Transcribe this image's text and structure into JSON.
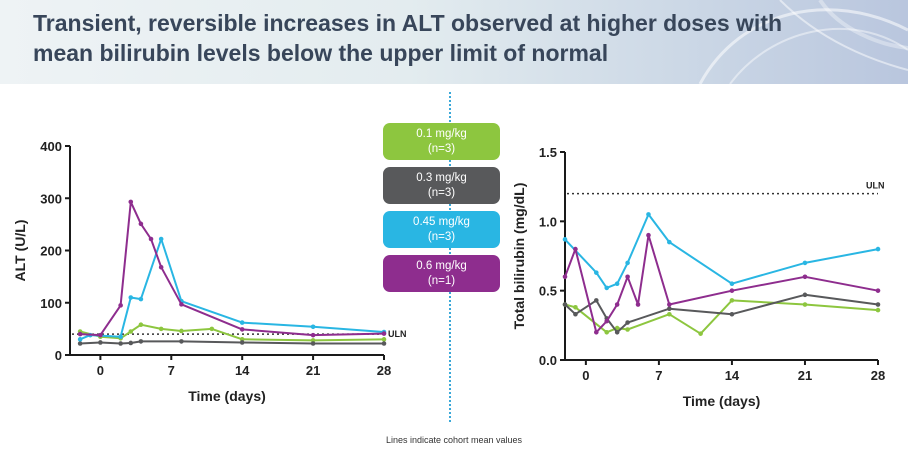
{
  "header": {
    "title_line1": "Transient, reversible increases in ALT observed at higher doses with",
    "title_line2": "mean bilirubin levels below the upper limit of normal"
  },
  "footnote": "Lines indicate cohort mean values",
  "colors": {
    "dose_0_1": "#8dc63f",
    "dose_0_3": "#58595b",
    "dose_0_45": "#29b6e3",
    "dose_0_6": "#8e2d8e"
  },
  "legend": [
    {
      "dose": "0.1 mg/kg",
      "n": "(n=3)",
      "color": "#8dc63f"
    },
    {
      "dose": "0.3 mg/kg",
      "n": "(n=3)",
      "color": "#58595b"
    },
    {
      "dose": "0.45 mg/kg",
      "n": "(n=3)",
      "color": "#29b6e3"
    },
    {
      "dose": "0.6 mg/kg",
      "n": "(n=1)",
      "color": "#8e2d8e"
    }
  ],
  "chart_data": [
    {
      "id": "alt",
      "type": "line",
      "xlabel": "Time (days)",
      "ylabel": "ALT (U/L)",
      "xlim": [
        -3,
        28
      ],
      "ylim": [
        0,
        400
      ],
      "xticks": [
        0,
        7,
        14,
        21,
        28
      ],
      "yticks": [
        0,
        100,
        200,
        300,
        400
      ],
      "reference_line": {
        "label": "ULN",
        "value": 40
      },
      "series": [
        {
          "name": "0.1 mg/kg (n=3)",
          "color": "#8dc63f",
          "x": [
            -2,
            0,
            2,
            3,
            4,
            6,
            8,
            11,
            14,
            21,
            28
          ],
          "y": [
            45,
            35,
            32,
            45,
            58,
            50,
            46,
            50,
            30,
            28,
            30
          ]
        },
        {
          "name": "0.3 mg/kg (n=3)",
          "color": "#58595b",
          "x": [
            -2,
            0,
            2,
            3,
            4,
            8,
            14,
            21,
            28
          ],
          "y": [
            22,
            24,
            22,
            23,
            26,
            26,
            24,
            22,
            22
          ]
        },
        {
          "name": "0.45 mg/kg (n=3)",
          "color": "#29b6e3",
          "x": [
            -2,
            -1,
            2,
            3,
            4,
            6,
            8,
            14,
            21,
            28
          ],
          "y": [
            30,
            38,
            35,
            110,
            107,
            222,
            103,
            62,
            54,
            44
          ]
        },
        {
          "name": "0.6 mg/kg (n=1)",
          "color": "#8e2d8e",
          "x": [
            -2,
            0,
            2,
            3,
            4,
            5,
            6,
            8,
            14,
            21,
            28
          ],
          "y": [
            40,
            38,
            95,
            293,
            251,
            222,
            168,
            97,
            49,
            38,
            41
          ]
        }
      ]
    },
    {
      "id": "bilirubin",
      "type": "line",
      "xlabel": "Time (days)",
      "ylabel": "Total bilirubin (mg/dL)",
      "xlim": [
        -2,
        28
      ],
      "ylim": [
        0,
        1.5
      ],
      "xticks": [
        0,
        7,
        14,
        21,
        28
      ],
      "yticks": [
        0.0,
        0.5,
        1.0,
        1.5
      ],
      "ytick_labels": [
        "0.0",
        "0.5",
        "1.0",
        "1.5"
      ],
      "reference_line": {
        "label": "ULN",
        "value": 1.2
      },
      "series": [
        {
          "name": "0.1 mg/kg (n=3)",
          "color": "#8dc63f",
          "x": [
            -2,
            -1,
            2,
            3,
            4,
            8,
            11,
            14,
            21,
            28
          ],
          "y": [
            0.4,
            0.38,
            0.2,
            0.23,
            0.22,
            0.33,
            0.19,
            0.43,
            0.4,
            0.36
          ]
        },
        {
          "name": "0.3 mg/kg (n=3)",
          "color": "#58595b",
          "x": [
            -2,
            -1,
            1,
            2,
            3,
            4,
            8,
            14,
            21,
            28
          ],
          "y": [
            0.4,
            0.33,
            0.43,
            0.3,
            0.2,
            0.27,
            0.37,
            0.33,
            0.47,
            0.4
          ]
        },
        {
          "name": "0.45 mg/kg (n=3)",
          "color": "#29b6e3",
          "x": [
            -2,
            1,
            2,
            3,
            4,
            6,
            8,
            14,
            21,
            28
          ],
          "y": [
            0.87,
            0.63,
            0.52,
            0.55,
            0.7,
            1.05,
            0.85,
            0.55,
            0.7,
            0.8
          ]
        },
        {
          "name": "0.6 mg/kg (n=1)",
          "color": "#8e2d8e",
          "x": [
            -2,
            -1,
            1,
            2,
            3,
            4,
            5,
            6,
            8,
            14,
            21,
            28
          ],
          "y": [
            0.6,
            0.8,
            0.2,
            0.28,
            0.4,
            0.6,
            0.4,
            0.9,
            0.4,
            0.5,
            0.6,
            0.5
          ]
        }
      ]
    }
  ]
}
